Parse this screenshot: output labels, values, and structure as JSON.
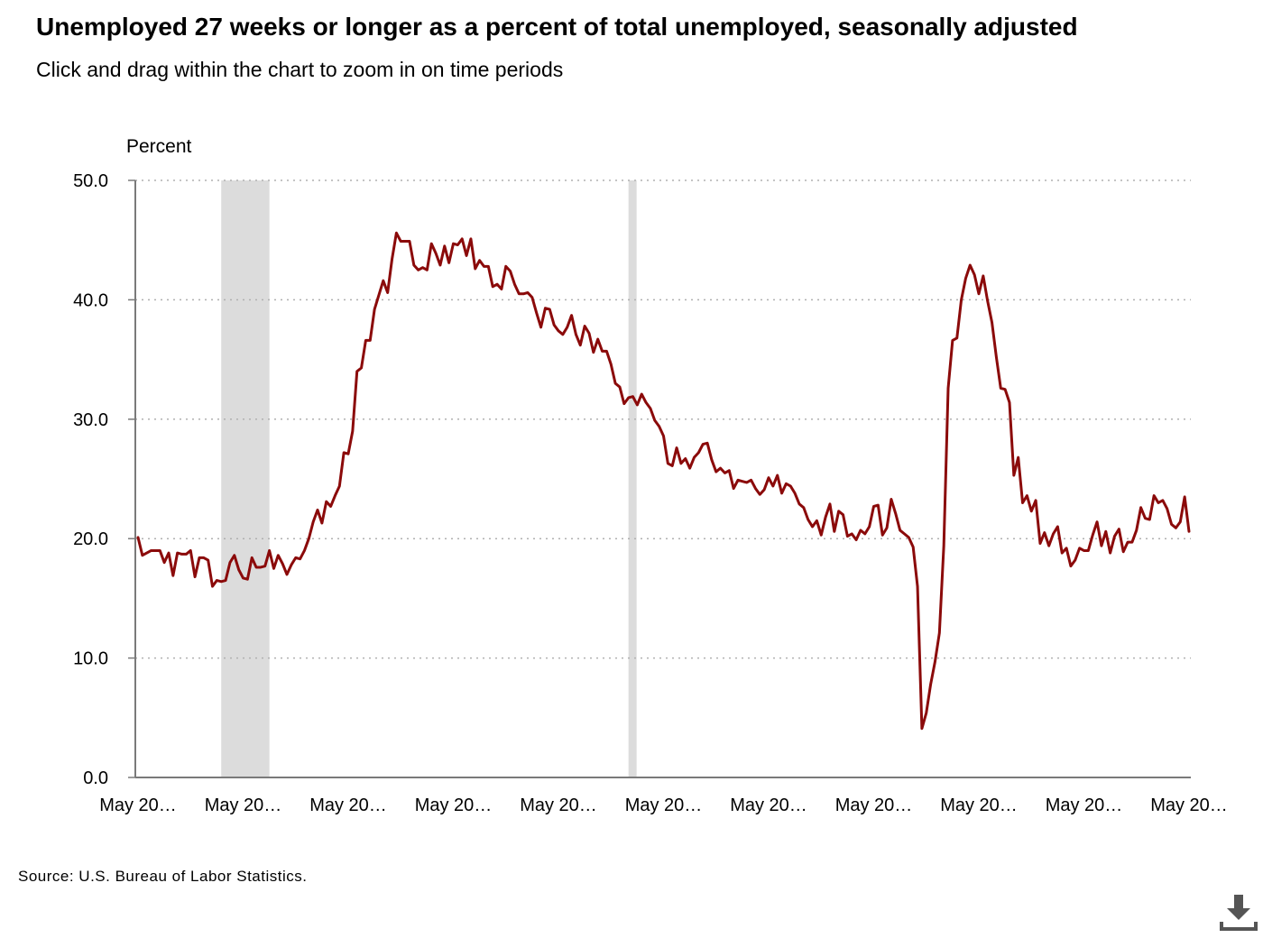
{
  "title": "Unemployed 27 weeks or longer as a percent of total unemployed, seasonally adjusted",
  "subtitle": "Click and drag within the chart to zoom in on time periods",
  "source": "Source: U.S. Bureau of Labor Statistics.",
  "download_icon": "download-icon",
  "colors": {
    "line": "#8b0a0a",
    "recession": "#dcdcdc",
    "grid": "#b0b0b0",
    "axis": "#7a7a7a"
  },
  "chart_data": {
    "type": "line",
    "ylabel": "Percent",
    "ylim": [
      0,
      50
    ],
    "yticks": [
      "0.0",
      "10.0",
      "20.0",
      "30.0",
      "40.0",
      "50.0"
    ],
    "xtick_labels": [
      "May 20…",
      "May 20…",
      "May 20…",
      "May 20…",
      "May 20…",
      "May 20…",
      "May 20…",
      "May 20…",
      "May 20…",
      "May 20…",
      "May 20…"
    ],
    "grid": true,
    "recession_bands_month_index": [
      [
        19,
        30
      ],
      [
        112,
        113
      ]
    ],
    "series": [
      {
        "values": [
          20.1,
          18.6,
          18.8,
          19.0,
          19.0,
          19.0,
          18.0,
          18.8,
          16.9,
          18.8,
          18.7,
          18.7,
          19.0,
          16.8,
          18.4,
          18.4,
          18.2,
          16.0,
          16.5,
          16.4,
          16.5,
          18.0,
          18.6,
          17.4,
          16.7,
          16.6,
          18.4,
          17.6,
          17.6,
          17.7,
          19.0,
          17.5,
          18.6,
          17.9,
          17.0,
          17.8,
          18.4,
          18.3,
          19.0,
          20.0,
          21.4,
          22.4,
          21.3,
          23.1,
          22.7,
          23.6,
          24.4,
          27.2,
          27.1,
          29.0,
          34.0,
          34.3,
          36.6,
          36.6,
          39.2,
          40.4,
          41.6,
          40.6,
          43.4,
          45.6,
          44.9,
          44.9,
          44.9,
          42.9,
          42.5,
          42.7,
          42.5,
          44.7,
          43.9,
          42.9,
          44.5,
          43.1,
          44.7,
          44.6,
          45.1,
          43.7,
          45.1,
          42.6,
          43.3,
          42.8,
          42.8,
          41.1,
          41.3,
          40.9,
          42.8,
          42.4,
          41.3,
          40.5,
          40.5,
          40.6,
          40.2,
          38.9,
          37.7,
          39.3,
          39.2,
          37.9,
          37.4,
          37.1,
          37.7,
          38.7,
          37.1,
          36.2,
          37.8,
          37.2,
          35.6,
          36.7,
          35.7,
          35.7,
          34.6,
          33.0,
          32.7,
          31.3,
          31.8,
          31.9,
          31.2,
          32.1,
          31.4,
          30.9,
          29.9,
          29.4,
          28.6,
          26.3,
          26.1,
          27.6,
          26.3,
          26.7,
          25.9,
          26.8,
          27.2,
          27.9,
          28.0,
          26.6,
          25.6,
          25.9,
          25.5,
          25.7,
          24.2,
          24.9,
          24.8,
          24.7,
          24.9,
          24.2,
          23.7,
          24.1,
          25.1,
          24.4,
          25.3,
          23.8,
          24.6,
          24.4,
          23.8,
          22.9,
          22.6,
          21.6,
          21.0,
          21.5,
          20.3,
          21.8,
          22.9,
          20.6,
          22.3,
          22.0,
          20.2,
          20.4,
          19.9,
          20.7,
          20.4,
          21.0,
          22.7,
          22.8,
          20.3,
          20.9,
          23.3,
          22.1,
          20.7,
          20.4,
          20.1,
          19.3,
          16.0,
          4.1,
          5.4,
          7.8,
          9.7,
          12.1,
          19.4,
          32.6,
          36.6,
          36.8,
          40.0,
          41.8,
          42.9,
          42.1,
          40.5,
          42.0,
          39.9,
          38.1,
          35.2,
          32.6,
          32.5,
          31.4,
          25.3,
          26.8,
          23.0,
          23.6,
          22.3,
          23.2,
          19.6,
          20.5,
          19.4,
          20.4,
          21.0,
          18.8,
          19.2,
          17.7,
          18.2,
          19.2,
          19.0,
          19.0,
          20.3,
          21.4,
          19.4,
          20.6,
          18.8,
          20.2,
          20.8,
          18.9,
          19.7,
          19.7,
          20.7,
          22.6,
          21.7,
          21.6,
          23.6,
          23.0,
          23.2,
          22.5,
          21.2,
          20.9,
          21.4,
          23.5,
          20.6
        ]
      }
    ]
  }
}
